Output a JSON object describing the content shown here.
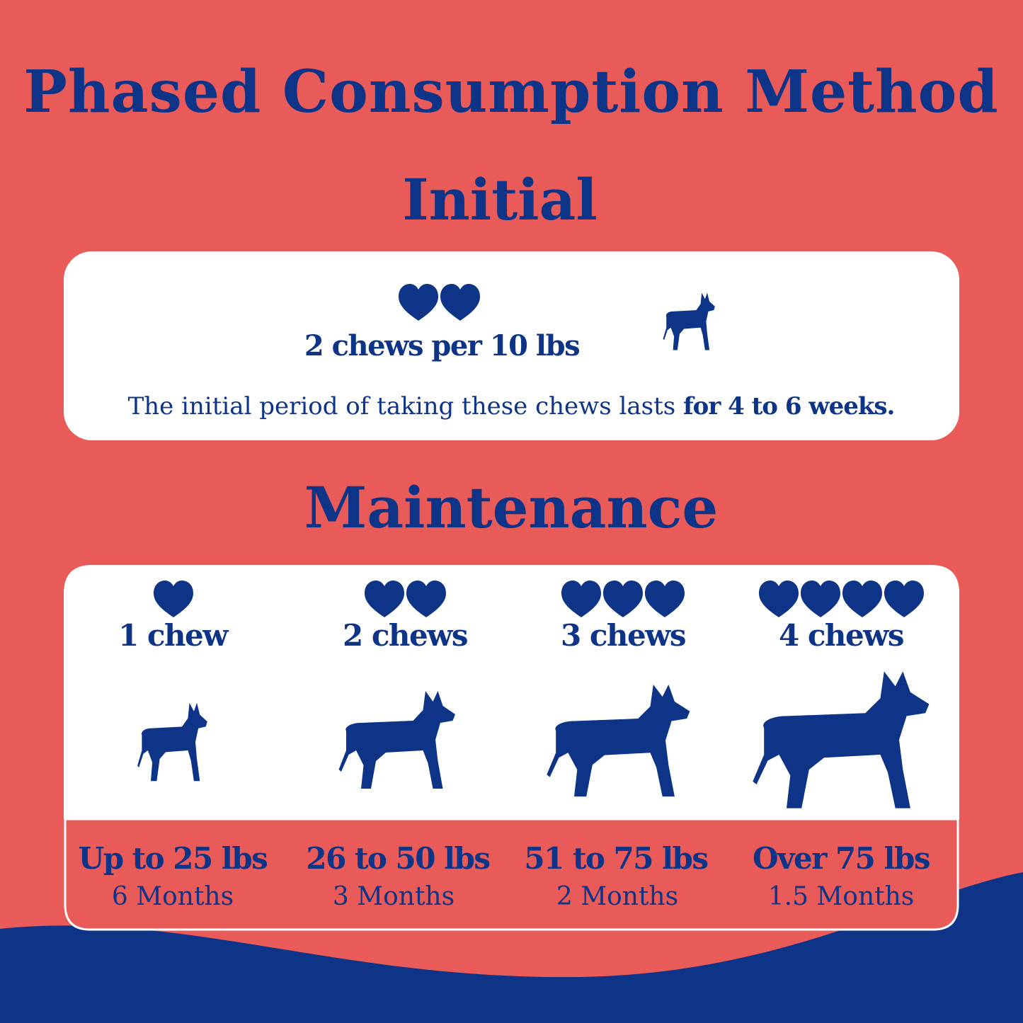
{
  "title": "Phased Consumption Method",
  "initial": {
    "heading": "Initial",
    "dose": "2 chews per 10 lbs",
    "note": "The initial period of taking these chews lasts ",
    "note_bold": "for 4 to 6 weeks."
  },
  "maintenance": {
    "heading": "Maintenance",
    "tiers": [
      {
        "chews": "1 chew",
        "weight": "Up to 25 lbs",
        "duration": "6 Months"
      },
      {
        "chews": "2 chews",
        "weight": "26 to 50 lbs",
        "duration": "3 Months"
      },
      {
        "chews": "3 chews",
        "weight": "51 to 75 lbs",
        "duration": "2 Months"
      },
      {
        "chews": "4 chews",
        "weight": "Over 75 lbs",
        "duration": "1.5 Months"
      }
    ]
  }
}
